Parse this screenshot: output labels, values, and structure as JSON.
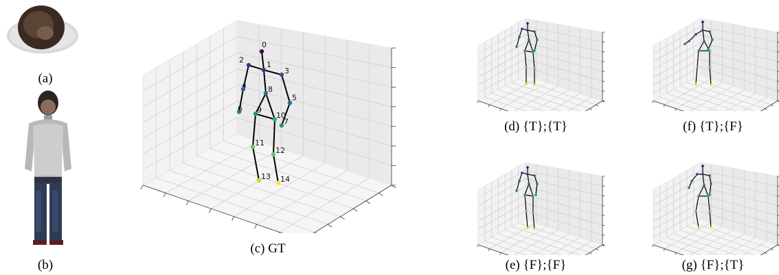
{
  "captions": {
    "a": "(a)",
    "b": "(b)",
    "c": "(c) GT",
    "d": "(d) {T};{T}",
    "e": "(e) {F};{F}",
    "f": "(f) {T};{F}",
    "g": "(g) {F};{T}"
  },
  "joint_labels": [
    "0",
    "1",
    "2",
    "3",
    "4",
    "5",
    "6",
    "7",
    "8",
    "9",
    "10",
    "11",
    "12",
    "13",
    "14"
  ],
  "colors": {
    "bone": "#000000",
    "grid": "#cfcfcf",
    "pane": "#f2f2f2",
    "joint_head": "#440154",
    "joint_mid": "#21918c",
    "joint_low": "#5ec962",
    "joint_foot": "#fde725"
  },
  "icons": {
    "top_view_cloud": "head-point-cloud-icon",
    "front_view_cloud": "person-point-cloud-icon"
  }
}
